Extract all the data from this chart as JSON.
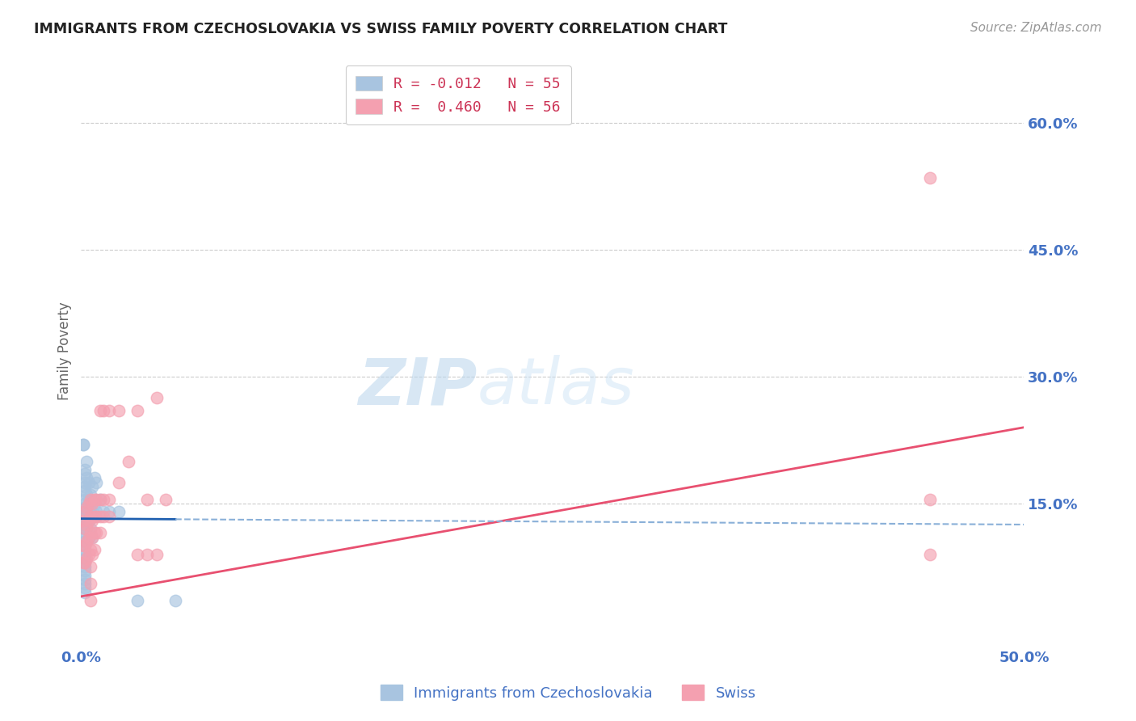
{
  "title": "IMMIGRANTS FROM CZECHOSLOVAKIA VS SWISS FAMILY POVERTY CORRELATION CHART",
  "source": "Source: ZipAtlas.com",
  "ylabel": "Family Poverty",
  "ytick_labels": [
    "60.0%",
    "45.0%",
    "30.0%",
    "15.0%"
  ],
  "ytick_values": [
    0.6,
    0.45,
    0.3,
    0.15
  ],
  "xlim": [
    0.0,
    0.5
  ],
  "ylim": [
    -0.02,
    0.68
  ],
  "watermark_zip": "ZIP",
  "watermark_atlas": "atlas",
  "blue_color": "#a8c4e0",
  "pink_color": "#f4a0b0",
  "trendline_blue_solid_color": "#2060b0",
  "trendline_blue_dashed_color": "#8ab0d8",
  "trendline_pink_color": "#e85070",
  "grid_color": "#cccccc",
  "blue_scatter": [
    [
      0.001,
      0.22
    ],
    [
      0.001,
      0.22
    ],
    [
      0.002,
      0.19
    ],
    [
      0.002,
      0.185
    ],
    [
      0.002,
      0.175
    ],
    [
      0.002,
      0.17
    ],
    [
      0.002,
      0.165
    ],
    [
      0.002,
      0.155
    ],
    [
      0.002,
      0.15
    ],
    [
      0.002,
      0.145
    ],
    [
      0.002,
      0.14
    ],
    [
      0.002,
      0.135
    ],
    [
      0.002,
      0.13
    ],
    [
      0.002,
      0.125
    ],
    [
      0.002,
      0.12
    ],
    [
      0.002,
      0.115
    ],
    [
      0.002,
      0.11
    ],
    [
      0.002,
      0.105
    ],
    [
      0.002,
      0.1
    ],
    [
      0.002,
      0.095
    ],
    [
      0.002,
      0.09
    ],
    [
      0.002,
      0.085
    ],
    [
      0.002,
      0.08
    ],
    [
      0.002,
      0.075
    ],
    [
      0.002,
      0.07
    ],
    [
      0.002,
      0.065
    ],
    [
      0.002,
      0.06
    ],
    [
      0.002,
      0.055
    ],
    [
      0.002,
      0.05
    ],
    [
      0.002,
      0.045
    ],
    [
      0.003,
      0.2
    ],
    [
      0.003,
      0.18
    ],
    [
      0.003,
      0.16
    ],
    [
      0.003,
      0.14
    ],
    [
      0.003,
      0.12
    ],
    [
      0.004,
      0.175
    ],
    [
      0.004,
      0.155
    ],
    [
      0.004,
      0.13
    ],
    [
      0.004,
      0.11
    ],
    [
      0.005,
      0.16
    ],
    [
      0.005,
      0.14
    ],
    [
      0.005,
      0.12
    ],
    [
      0.006,
      0.17
    ],
    [
      0.006,
      0.14
    ],
    [
      0.006,
      0.11
    ],
    [
      0.007,
      0.18
    ],
    [
      0.007,
      0.15
    ],
    [
      0.008,
      0.175
    ],
    [
      0.008,
      0.14
    ],
    [
      0.01,
      0.155
    ],
    [
      0.012,
      0.14
    ],
    [
      0.015,
      0.14
    ],
    [
      0.02,
      0.14
    ],
    [
      0.03,
      0.035
    ],
    [
      0.05,
      0.035
    ]
  ],
  "pink_scatter": [
    [
      0.001,
      0.13
    ],
    [
      0.001,
      0.1
    ],
    [
      0.001,
      0.08
    ],
    [
      0.002,
      0.14
    ],
    [
      0.002,
      0.12
    ],
    [
      0.002,
      0.1
    ],
    [
      0.002,
      0.08
    ],
    [
      0.003,
      0.145
    ],
    [
      0.003,
      0.125
    ],
    [
      0.003,
      0.105
    ],
    [
      0.003,
      0.085
    ],
    [
      0.004,
      0.15
    ],
    [
      0.004,
      0.13
    ],
    [
      0.004,
      0.11
    ],
    [
      0.004,
      0.09
    ],
    [
      0.005,
      0.155
    ],
    [
      0.005,
      0.135
    ],
    [
      0.005,
      0.115
    ],
    [
      0.005,
      0.095
    ],
    [
      0.005,
      0.075
    ],
    [
      0.005,
      0.055
    ],
    [
      0.005,
      0.035
    ],
    [
      0.006,
      0.15
    ],
    [
      0.006,
      0.13
    ],
    [
      0.006,
      0.11
    ],
    [
      0.006,
      0.09
    ],
    [
      0.007,
      0.155
    ],
    [
      0.007,
      0.135
    ],
    [
      0.007,
      0.115
    ],
    [
      0.007,
      0.095
    ],
    [
      0.008,
      0.155
    ],
    [
      0.008,
      0.135
    ],
    [
      0.008,
      0.115
    ],
    [
      0.01,
      0.26
    ],
    [
      0.01,
      0.155
    ],
    [
      0.01,
      0.135
    ],
    [
      0.01,
      0.115
    ],
    [
      0.012,
      0.26
    ],
    [
      0.012,
      0.155
    ],
    [
      0.012,
      0.135
    ],
    [
      0.015,
      0.26
    ],
    [
      0.015,
      0.155
    ],
    [
      0.015,
      0.135
    ],
    [
      0.02,
      0.26
    ],
    [
      0.02,
      0.175
    ],
    [
      0.025,
      0.2
    ],
    [
      0.03,
      0.26
    ],
    [
      0.03,
      0.09
    ],
    [
      0.035,
      0.155
    ],
    [
      0.035,
      0.09
    ],
    [
      0.04,
      0.275
    ],
    [
      0.04,
      0.09
    ],
    [
      0.045,
      0.155
    ],
    [
      0.45,
      0.535
    ],
    [
      0.45,
      0.155
    ],
    [
      0.45,
      0.09
    ]
  ],
  "blue_trend_x": [
    0.0,
    0.5
  ],
  "blue_trend_y": [
    0.132,
    0.125
  ],
  "pink_trend_x": [
    0.0,
    0.5
  ],
  "pink_trend_y": [
    0.04,
    0.24
  ]
}
